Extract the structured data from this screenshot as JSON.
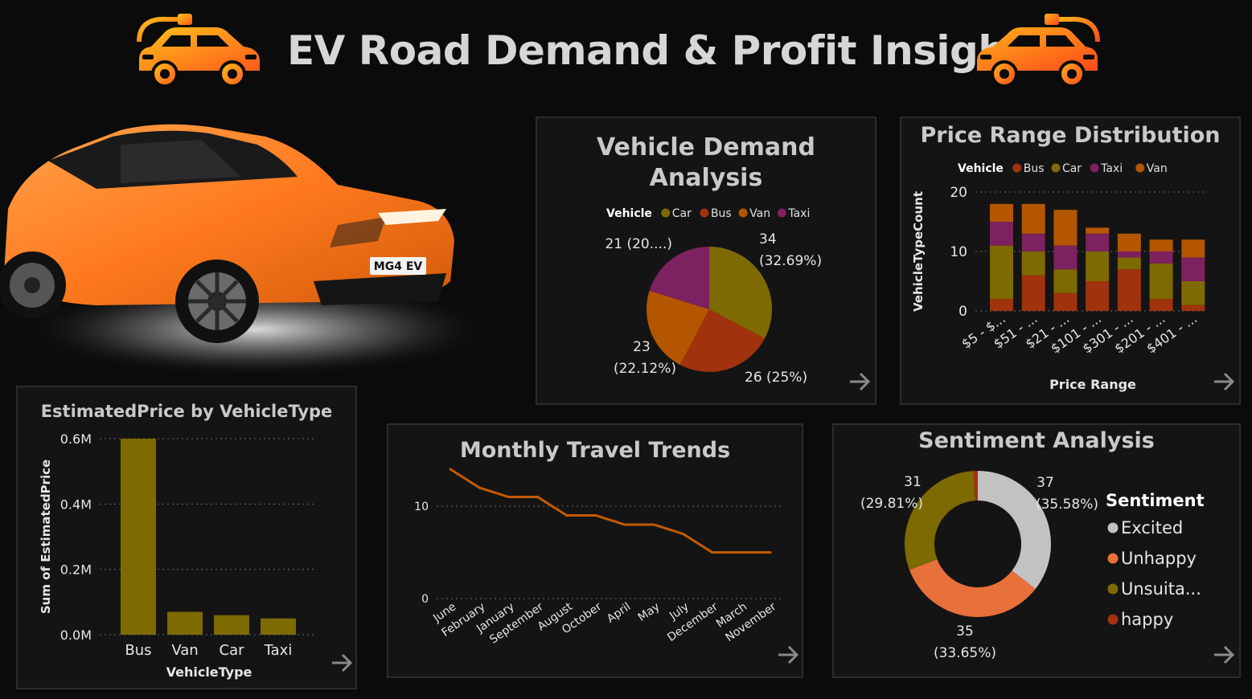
{
  "header": {
    "title": "EV Road Demand & Profit Insights",
    "accent_colors": [
      "#ffb61a",
      "#ff6a1a"
    ]
  },
  "hero_image": {
    "plate_text": "MG4 EV",
    "car_color": "#ff8a2a"
  },
  "icons": {
    "logo_left": "ev-car-plug-icon",
    "logo_right": "ev-car-plug-icon",
    "drill": "arrow-right-icon"
  },
  "panels": {
    "demand": {
      "title_line1": "Vehicle Demand",
      "title_line2": "Analysis",
      "legend_title": "Vehicle"
    },
    "price_range": {
      "title": "Price Range Distribution",
      "legend_title": "Vehicle"
    },
    "estimated": {
      "title": "EstimatedPrice by VehicleType"
    },
    "monthly": {
      "title": "Monthly Travel Trends"
    },
    "sentiment": {
      "title": "Sentiment Analysis",
      "legend_title": "Sentiment"
    }
  },
  "chart_data": [
    {
      "id": "demand",
      "type": "pie",
      "title": "Vehicle Demand Analysis",
      "legend_title": "Vehicle",
      "slices": [
        {
          "name": "Car",
          "value": 34,
          "label_value": "34",
          "label_pct": "(32.69%)",
          "color": "#7d6a00"
        },
        {
          "name": "Bus",
          "value": 26,
          "label_value": "26 (25%)",
          "label_pct": "",
          "color": "#a0320e"
        },
        {
          "name": "Van",
          "value": 23,
          "label_value": "23",
          "label_pct": "(22.12%)",
          "color": "#b45600"
        },
        {
          "name": "Taxi",
          "value": 21,
          "label_value": "21 (20....)",
          "label_pct": "",
          "color": "#7d2160"
        }
      ]
    },
    {
      "id": "price_range",
      "type": "bar",
      "stacked": true,
      "title": "Price Range Distribution",
      "legend_title": "Vehicle",
      "xlabel": "Price Range",
      "ylabel": "VehicleTypeCount",
      "ylim": [
        0,
        20
      ],
      "yticks": [
        "0",
        "10",
        "20"
      ],
      "categories": [
        "$5 - $...",
        "$51 - ...",
        "$21 - ...",
        "$101 - ...",
        "$301 - ...",
        "$201 - ...",
        "$401 - ..."
      ],
      "series": [
        {
          "name": "Bus",
          "color": "#a0320e",
          "values": [
            2,
            6,
            3,
            5,
            7,
            2,
            1
          ]
        },
        {
          "name": "Car",
          "color": "#7d6a00",
          "values": [
            9,
            4,
            4,
            5,
            2,
            6,
            4
          ]
        },
        {
          "name": "Taxi",
          "color": "#7d2160",
          "values": [
            4,
            3,
            4,
            3,
            1,
            2,
            4
          ]
        },
        {
          "name": "Van",
          "color": "#b45600",
          "values": [
            3,
            5,
            6,
            1,
            3,
            2,
            3
          ]
        }
      ],
      "grid": true,
      "legend_position": "top-left"
    },
    {
      "id": "estimated",
      "type": "bar",
      "title": "EstimatedPrice by VehicleType",
      "xlabel": "VehicleType",
      "ylabel": "Sum of EstimatedPrice",
      "ylim": [
        0,
        0.6
      ],
      "yticks": [
        "0.0M",
        "0.2M",
        "0.4M",
        "0.6M"
      ],
      "categories": [
        "Bus",
        "Van",
        "Car",
        "Taxi"
      ],
      "values": [
        0.6,
        0.07,
        0.06,
        0.05
      ],
      "color": "#7d6a00",
      "grid": true
    },
    {
      "id": "monthly",
      "type": "line",
      "title": "Monthly Travel Trends",
      "ylim": [
        0,
        14
      ],
      "yticks": [
        "0",
        "10"
      ],
      "x": [
        "June",
        "February",
        "January",
        "September",
        "August",
        "October",
        "April",
        "May",
        "July",
        "December",
        "March",
        "November"
      ],
      "values": [
        14,
        12,
        11,
        11,
        9,
        9,
        8,
        8,
        7,
        5,
        5,
        5
      ],
      "color": "#c45a00",
      "grid": true
    },
    {
      "id": "sentiment",
      "type": "pie",
      "donut": true,
      "title": "Sentiment Analysis",
      "legend_title": "Sentiment",
      "legend_position": "right",
      "slices": [
        {
          "name": "Excited",
          "value": 37,
          "label_value": "37",
          "label_pct": "(35.58%)",
          "color": "#c2c2c2"
        },
        {
          "name": "Unhappy",
          "value": 35,
          "label_value": "35",
          "label_pct": "(33.65%)",
          "color": "#e8703a"
        },
        {
          "name": "Unsuita...",
          "value": 31,
          "label_value": "31",
          "label_pct": "(29.81%)",
          "color": "#7d6a00"
        },
        {
          "name": "happy",
          "value": 1,
          "label_value": "",
          "label_pct": "",
          "color": "#a0320e"
        }
      ]
    }
  ]
}
